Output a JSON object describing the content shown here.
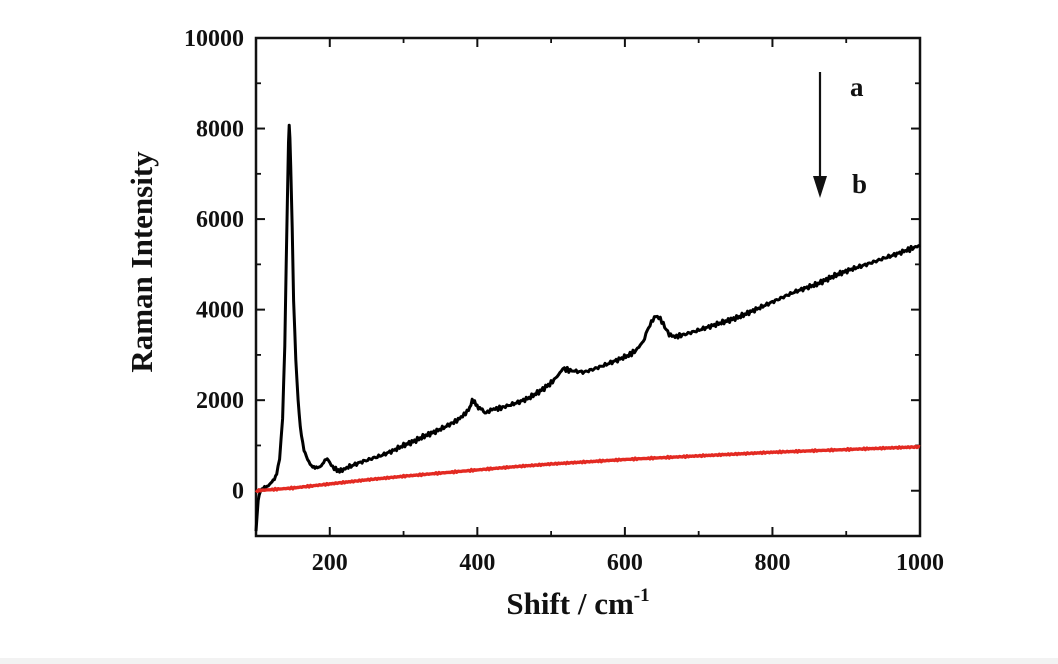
{
  "chart_data": {
    "type": "line",
    "title": "",
    "xlabel": "Shift / cm",
    "xlabel_superscript": "-1",
    "ylabel": "Raman Intensity",
    "xlim": [
      100,
      1000
    ],
    "ylim": [
      -1000,
      10000
    ],
    "x_ticks": [
      200,
      400,
      600,
      800,
      1000
    ],
    "x_tick_labels": [
      "200",
      "400",
      "600",
      "800",
      "1000"
    ],
    "y_ticks": [
      0,
      2000,
      4000,
      6000,
      8000,
      10000
    ],
    "y_tick_labels": [
      "0",
      "2000",
      "4000",
      "6000",
      "8000",
      "10000"
    ],
    "grid": false,
    "series": [
      {
        "name": "a",
        "color": "#000000",
        "points": [
          [
            100,
            -900
          ],
          [
            103,
            -200
          ],
          [
            106,
            0
          ],
          [
            110,
            60
          ],
          [
            115,
            100
          ],
          [
            120,
            160
          ],
          [
            125,
            260
          ],
          [
            128,
            380
          ],
          [
            132,
            700
          ],
          [
            136,
            1600
          ],
          [
            139,
            3200
          ],
          [
            141,
            5000
          ],
          [
            143,
            6800
          ],
          [
            144,
            7700
          ],
          [
            145,
            8050
          ],
          [
            146,
            7800
          ],
          [
            147,
            7200
          ],
          [
            149,
            5800
          ],
          [
            151,
            4200
          ],
          [
            154,
            2900
          ],
          [
            157,
            2000
          ],
          [
            160,
            1400
          ],
          [
            165,
            900
          ],
          [
            170,
            680
          ],
          [
            175,
            560
          ],
          [
            180,
            500
          ],
          [
            185,
            520
          ],
          [
            190,
            580
          ],
          [
            195,
            700
          ],
          [
            198,
            680
          ],
          [
            202,
            560
          ],
          [
            208,
            470
          ],
          [
            215,
            440
          ],
          [
            225,
            520
          ],
          [
            240,
            620
          ],
          [
            255,
            700
          ],
          [
            270,
            780
          ],
          [
            285,
            880
          ],
          [
            300,
            1000
          ],
          [
            315,
            1100
          ],
          [
            330,
            1220
          ],
          [
            345,
            1320
          ],
          [
            360,
            1440
          ],
          [
            372,
            1550
          ],
          [
            380,
            1650
          ],
          [
            388,
            1780
          ],
          [
            393,
            2000
          ],
          [
            398,
            1900
          ],
          [
            405,
            1800
          ],
          [
            412,
            1720
          ],
          [
            420,
            1800
          ],
          [
            430,
            1820
          ],
          [
            440,
            1870
          ],
          [
            455,
            1950
          ],
          [
            470,
            2050
          ],
          [
            485,
            2200
          ],
          [
            500,
            2380
          ],
          [
            510,
            2560
          ],
          [
            516,
            2700
          ],
          [
            524,
            2660
          ],
          [
            532,
            2640
          ],
          [
            545,
            2620
          ],
          [
            560,
            2700
          ],
          [
            575,
            2790
          ],
          [
            590,
            2890
          ],
          [
            605,
            2990
          ],
          [
            615,
            3100
          ],
          [
            625,
            3300
          ],
          [
            632,
            3600
          ],
          [
            638,
            3780
          ],
          [
            642,
            3860
          ],
          [
            648,
            3800
          ],
          [
            654,
            3620
          ],
          [
            660,
            3450
          ],
          [
            668,
            3400
          ],
          [
            680,
            3450
          ],
          [
            695,
            3520
          ],
          [
            710,
            3600
          ],
          [
            725,
            3680
          ],
          [
            740,
            3760
          ],
          [
            755,
            3840
          ],
          [
            770,
            3950
          ],
          [
            785,
            4060
          ],
          [
            800,
            4170
          ],
          [
            815,
            4280
          ],
          [
            830,
            4390
          ],
          [
            845,
            4480
          ],
          [
            860,
            4560
          ],
          [
            875,
            4680
          ],
          [
            890,
            4790
          ],
          [
            905,
            4880
          ],
          [
            920,
            4960
          ],
          [
            935,
            5040
          ],
          [
            950,
            5130
          ],
          [
            965,
            5210
          ],
          [
            980,
            5300
          ],
          [
            990,
            5360
          ],
          [
            1000,
            5420
          ]
        ]
      },
      {
        "name": "b",
        "color": "#e32a22",
        "points": [
          [
            100,
            0
          ],
          [
            150,
            60
          ],
          [
            200,
            150
          ],
          [
            250,
            240
          ],
          [
            300,
            320
          ],
          [
            350,
            390
          ],
          [
            400,
            460
          ],
          [
            450,
            530
          ],
          [
            500,
            590
          ],
          [
            550,
            640
          ],
          [
            600,
            690
          ],
          [
            650,
            730
          ],
          [
            700,
            770
          ],
          [
            750,
            810
          ],
          [
            800,
            850
          ],
          [
            850,
            880
          ],
          [
            900,
            910
          ],
          [
            950,
            940
          ],
          [
            1000,
            970
          ]
        ]
      }
    ],
    "annotations": [
      {
        "type": "arrow",
        "direction": "down",
        "from_label": "a",
        "to_label": "b"
      }
    ]
  }
}
